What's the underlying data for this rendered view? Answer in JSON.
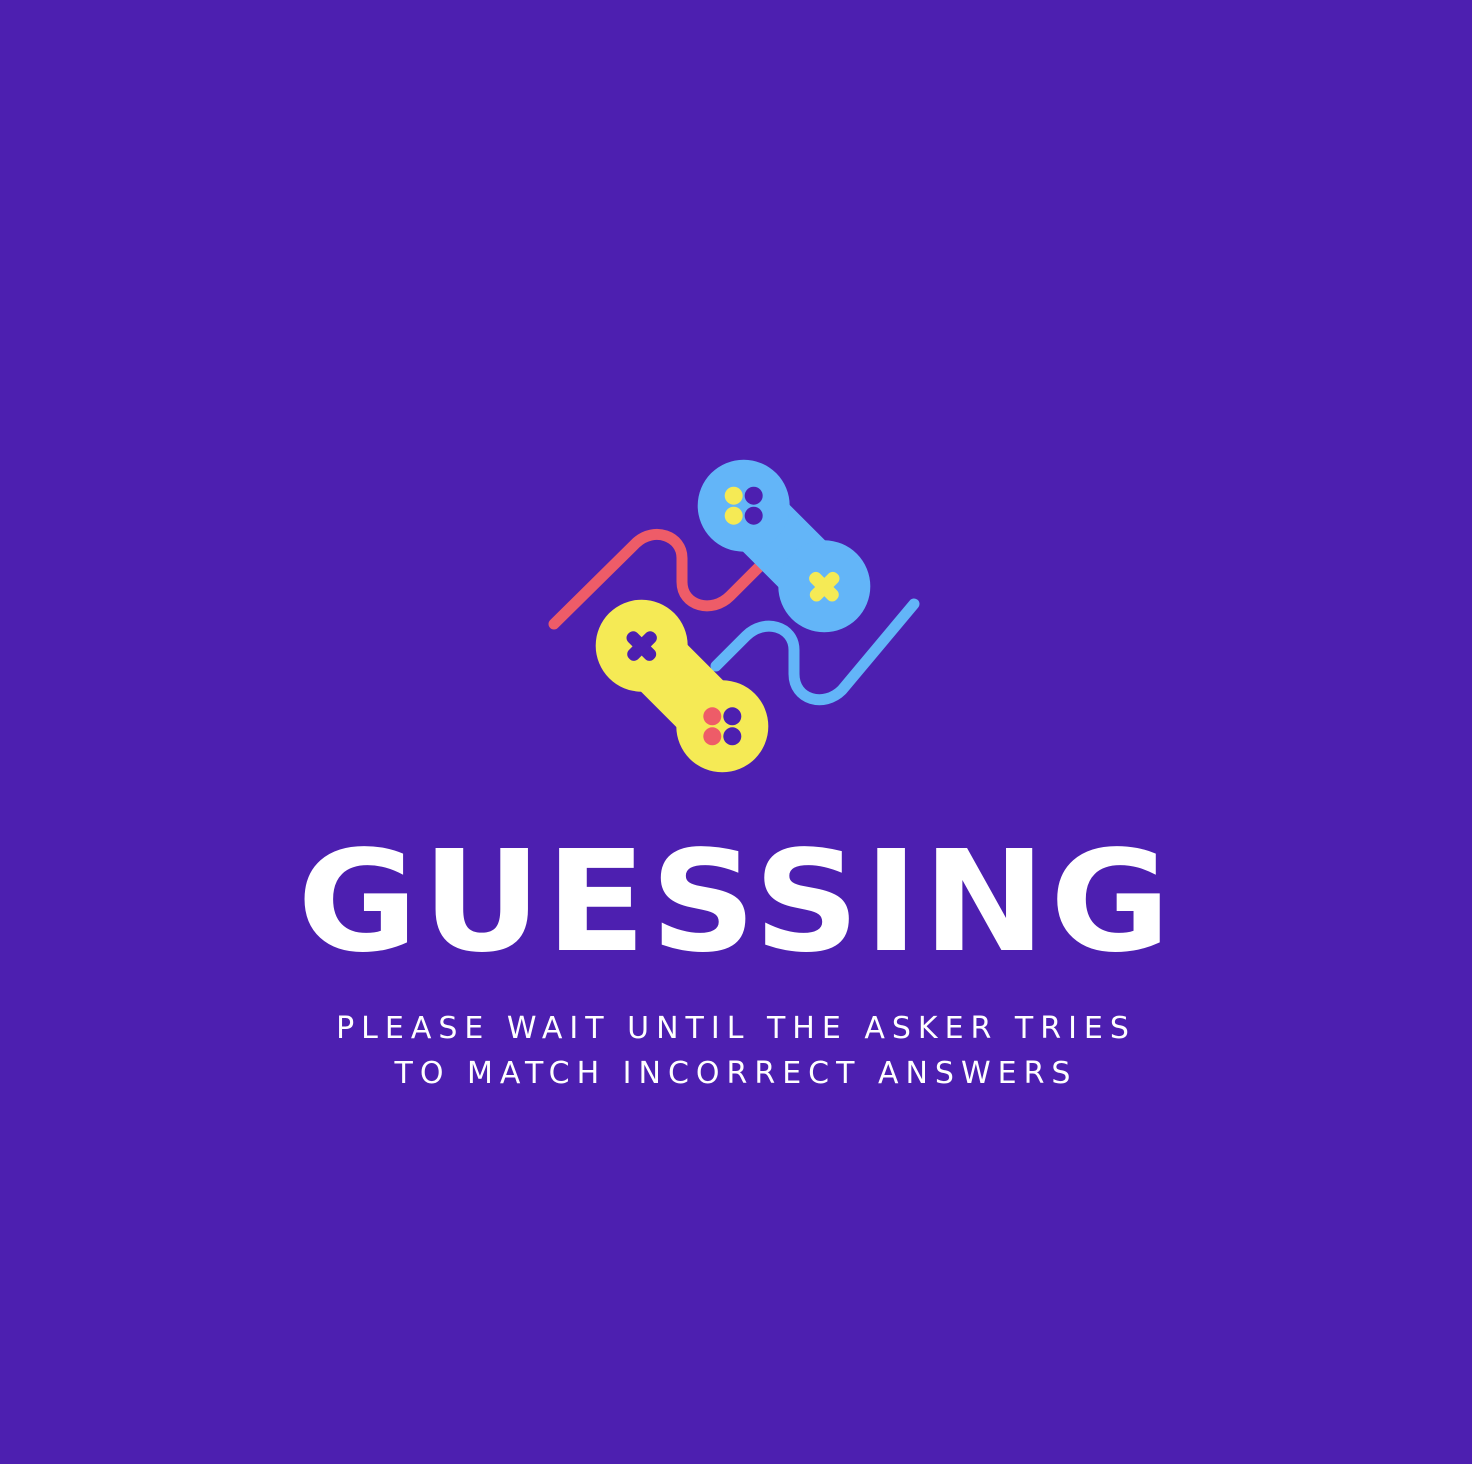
{
  "screen": {
    "title": "GUESSING",
    "message_lines": [
      "PLEASE WAIT UNTIL THE ASKER TRIES",
      "TO MATCH INCORRECT ANSWERS"
    ]
  },
  "logo": {
    "icon": "gamepads-icon"
  },
  "colors": {
    "background": "#4d1fb0",
    "text": "#ffffff",
    "blue_controller": "#63b5f8",
    "yellow_controller": "#f5ea55",
    "red_cable": "#ee5c68",
    "button_dark": "#4d1fb0"
  }
}
